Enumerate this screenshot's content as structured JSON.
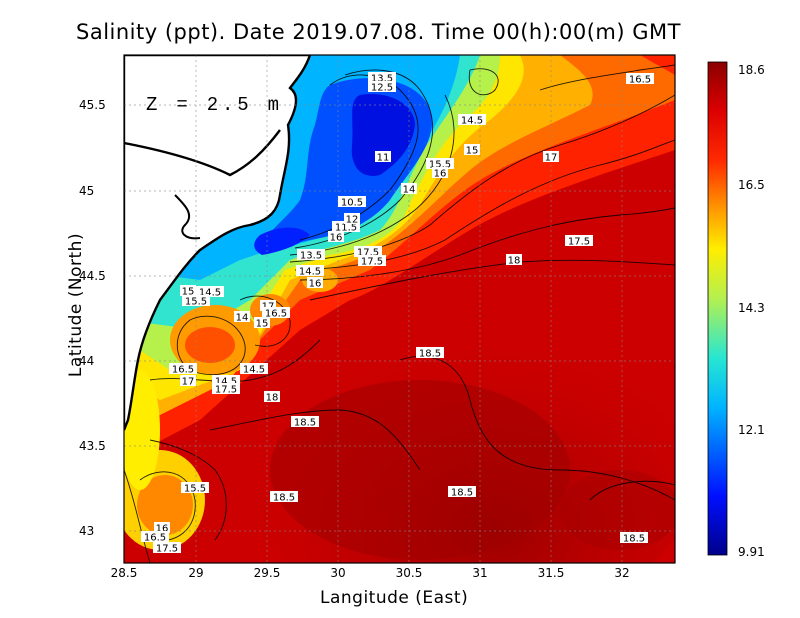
{
  "title": "Salinity (ppt). Date 2019.07.08. Time 00(h):00(m) GMT",
  "depth_label": "Z = 2.5 m",
  "xlabel": "Langitude (East)",
  "ylabel": "Latitude (North)",
  "x_ticks": [
    "28.5",
    "29",
    "29.5",
    "30",
    "30.5",
    "31",
    "31.5",
    "32"
  ],
  "y_ticks": [
    "45.5",
    "45",
    "44.5",
    "44",
    "43.5",
    "43"
  ],
  "colorbar": {
    "min": 9.91,
    "max": 18.6,
    "tick_labels": [
      "18.6",
      "16.5",
      "14.3",
      "12.1",
      "9.91"
    ]
  },
  "contour_labels": [
    {
      "text": "13.5"
    },
    {
      "text": "12.5"
    },
    {
      "text": "16.5"
    },
    {
      "text": "14.5"
    },
    {
      "text": "15"
    },
    {
      "text": "17"
    },
    {
      "text": "11"
    },
    {
      "text": "15.5"
    },
    {
      "text": "16"
    },
    {
      "text": "14"
    },
    {
      "text": "10.5"
    },
    {
      "text": "11.5"
    },
    {
      "text": "12"
    },
    {
      "text": "16"
    },
    {
      "text": "17.5"
    },
    {
      "text": "18"
    },
    {
      "text": "17.5"
    },
    {
      "text": "17.5"
    },
    {
      "text": "13.5"
    },
    {
      "text": "14.5"
    },
    {
      "text": "16"
    },
    {
      "text": "15"
    },
    {
      "text": "14.5"
    },
    {
      "text": "15.5"
    },
    {
      "text": "17"
    },
    {
      "text": "16.5"
    },
    {
      "text": "14"
    },
    {
      "text": "15"
    },
    {
      "text": "18.5"
    },
    {
      "text": "16.5"
    },
    {
      "text": "14.5"
    },
    {
      "text": "17"
    },
    {
      "text": "14.5"
    },
    {
      "text": "17.5"
    },
    {
      "text": "18"
    },
    {
      "text": "18.5"
    },
    {
      "text": "15.5"
    },
    {
      "text": "18.5"
    },
    {
      "text": "18.5"
    },
    {
      "text": "16"
    },
    {
      "text": "16.5"
    },
    {
      "text": "17.5"
    },
    {
      "text": "18.5"
    }
  ]
}
